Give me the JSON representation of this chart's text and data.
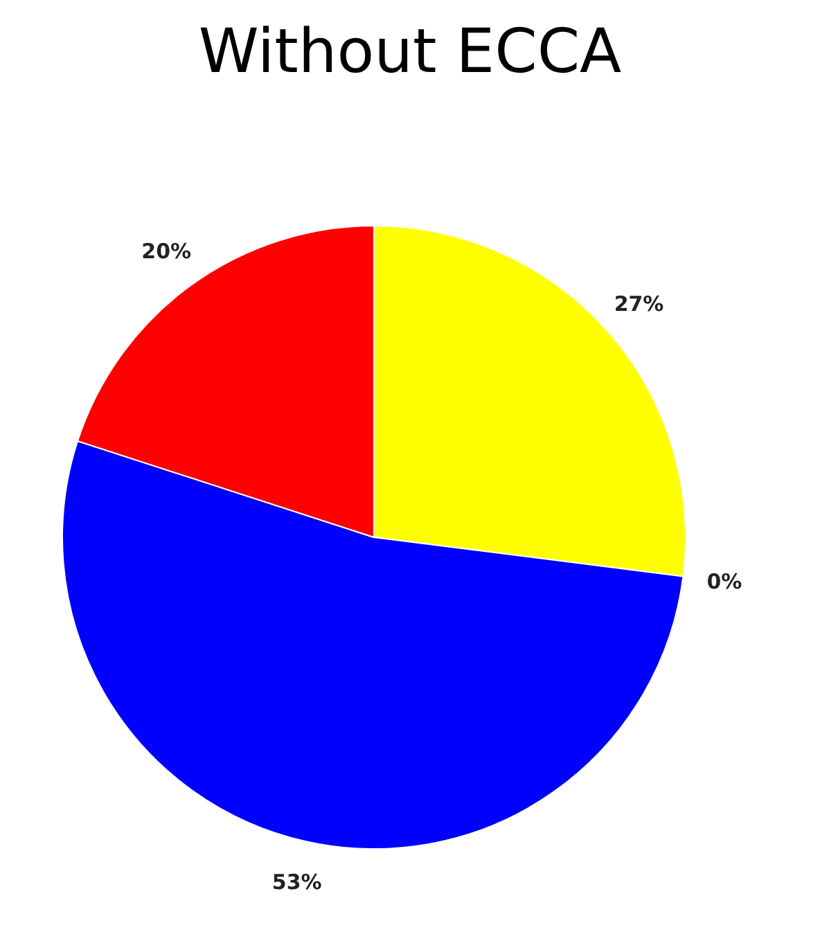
{
  "chart_data": {
    "type": "pie",
    "title": "Without ECCA",
    "categories": [
      null,
      null,
      null,
      null
    ],
    "values": [
      27,
      0,
      53,
      20
    ],
    "colors": [
      "#ffff00",
      null,
      "#0000ff",
      "#ff0000"
    ],
    "value_labels": [
      "27%",
      "0%",
      "53%",
      "20%"
    ]
  }
}
